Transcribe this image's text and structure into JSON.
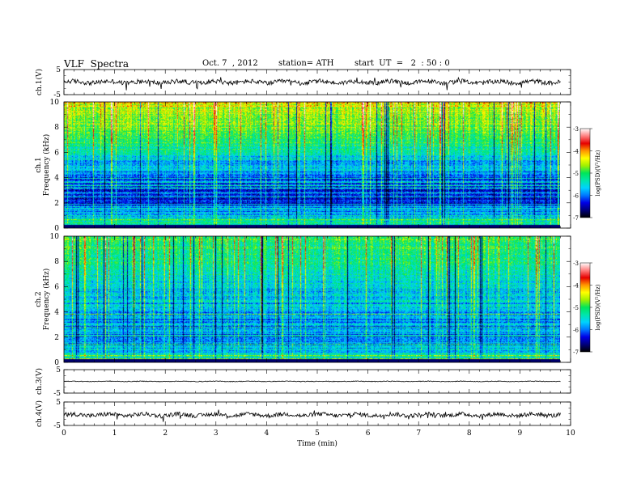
{
  "header": {
    "title": "VLF  Spectra",
    "date": "Oct. 7  , 2012",
    "station": "station= ATH",
    "start": "start  UT  =   2  : 50 : 0"
  },
  "colormap": [
    "#000000",
    "#00007a",
    "#0000e6",
    "#0078ff",
    "#00d2ff",
    "#00e6aa",
    "#00e65a",
    "#a0f000",
    "#ffff00",
    "#ff9600",
    "#e60000",
    "#ff8080",
    "#ffffff"
  ],
  "chart_data": [
    {
      "type": "line",
      "panel": "ch1-waveform",
      "ylabel": "ch.1(V)",
      "ylim": [
        -5,
        5
      ],
      "yticks": [
        "5",
        "-5"
      ],
      "xlim": [
        0,
        10
      ],
      "series": [
        {
          "x": [
            0,
            9.8
          ],
          "y": [
            0.0,
            0.0
          ],
          "noise": "small oscillation with spikes near t=0.9, 2.7, 5.9, 9.1"
        }
      ]
    },
    {
      "type": "heatmap",
      "panel": "ch1-spectrogram",
      "ylabel": "ch.1\nFrequency  (kHz)",
      "ylim": [
        0,
        10
      ],
      "yticks": [
        "10",
        "8",
        "6",
        "4",
        "2",
        "0"
      ],
      "xlim": [
        0,
        9.8
      ],
      "colorbar": {
        "label": "log(PSD)(V²/Hz)",
        "ticks": [
          "-3",
          "-4",
          "-5",
          "-6",
          "-7"
        ],
        "range": [
          -7,
          -3
        ]
      },
      "description_values": {
        "freq_kHz": [
          0,
          2,
          4,
          6,
          8,
          10
        ],
        "typical_logPSD": [
          -5.0,
          -6.3,
          -6.0,
          -5.4,
          -4.8,
          -4.5
        ]
      }
    },
    {
      "type": "heatmap",
      "panel": "ch2-spectrogram",
      "ylabel": "ch.2\nFrequency  (kHz)",
      "ylim": [
        0,
        10
      ],
      "yticks": [
        "10",
        "8",
        "6",
        "4",
        "2",
        "0"
      ],
      "xlim": [
        0,
        9.8
      ],
      "colorbar": {
        "label": "log(PSD)(V²/Hz)",
        "ticks": [
          "-3",
          "-4",
          "-5",
          "-6",
          "-7"
        ],
        "range": [
          -7,
          -3
        ]
      },
      "description_values": {
        "freq_kHz": [
          0,
          2,
          4,
          6,
          8,
          10
        ],
        "typical_logPSD": [
          -5.2,
          -6.0,
          -5.7,
          -5.6,
          -5.2,
          -5.0
        ]
      }
    },
    {
      "type": "line",
      "panel": "ch3-waveform",
      "ylabel": "ch.3(V)",
      "ylim": [
        -5,
        5
      ],
      "yticks": [
        "5",
        "-5"
      ],
      "xlim": [
        0,
        10
      ],
      "series": [
        {
          "x": [
            0,
            9.8
          ],
          "y": [
            0.0,
            0.0
          ],
          "noise": "flat"
        }
      ]
    },
    {
      "type": "line",
      "panel": "ch4-waveform",
      "ylabel": "ch.4(V)",
      "ylim": [
        -5,
        5
      ],
      "yticks": [
        "5",
        "-5"
      ],
      "xlim": [
        0,
        10
      ],
      "xlabel": "Time  (min)",
      "xticks": [
        "0",
        "1",
        "2",
        "3",
        "4",
        "5",
        "6",
        "7",
        "8",
        "9",
        "10"
      ],
      "series": [
        {
          "x": [
            0,
            9.8
          ],
          "y": [
            -0.5,
            -0.5
          ],
          "noise": "small oscillation, spike near t=2.5"
        }
      ]
    }
  ]
}
